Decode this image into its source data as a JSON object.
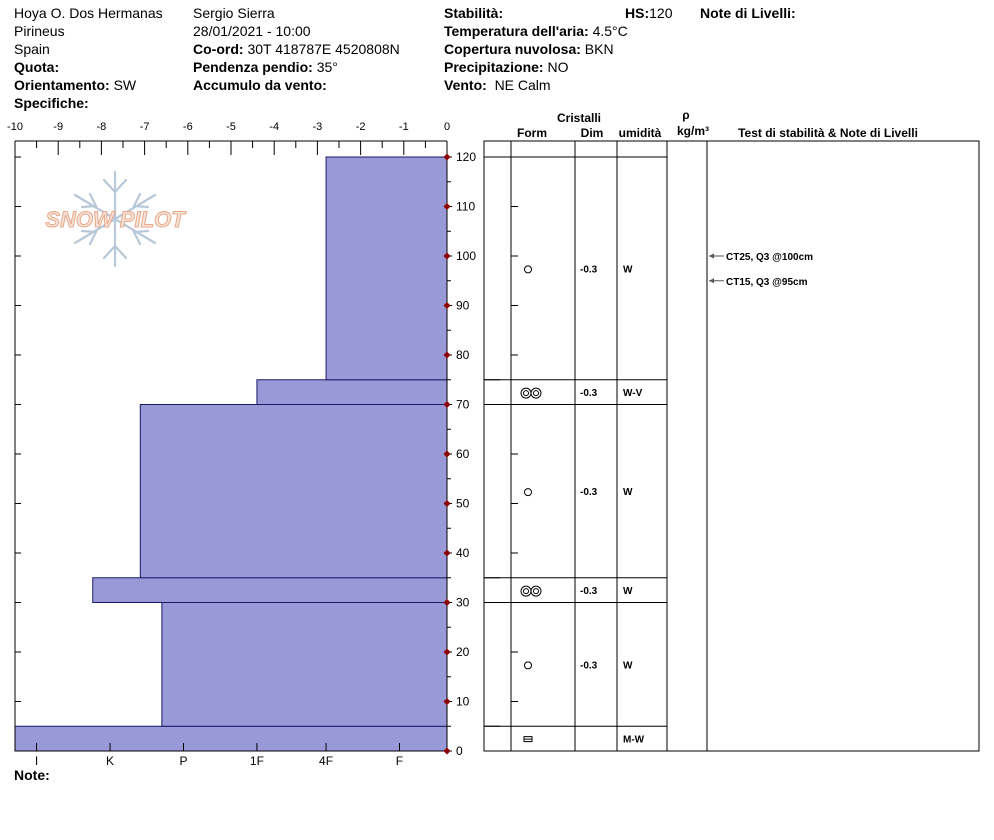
{
  "header": {
    "location": "Hoya O. Dos Hermanas",
    "region": "Pirineus",
    "country": "Spain",
    "quota_label": "Quota:",
    "orientation_label": "Orientamento:",
    "orientation_value": "SW",
    "specifics_label": "Specifiche:",
    "observer": "Sergio Sierra",
    "datetime": "28/01/2021 - 10:00",
    "coord_label": "Co-ord:",
    "coord_value": "30T 418787E 4520808N",
    "slope_label": "Pendenza pendio:",
    "slope_value": "35°",
    "wind_loading_label": "Accumulo da vento:",
    "stability_label": "Stabilità:",
    "hs_label": "HS:",
    "hs_value": "120",
    "air_temp_label": "Temperatura dell'aria:",
    "air_temp_value": "4.5°C",
    "cloud_label": "Copertura nuvolosa:",
    "cloud_value": "BKN",
    "precip_label": "Precipitazione:",
    "precip_value": "NO",
    "wind_label": "Vento:",
    "wind_value": "NE Calm",
    "layer_notes_label": "Note di Livelli:"
  },
  "note_label": "Note:",
  "logo_text": "SNOW PILOT",
  "colors": {
    "bar_fill": "#9999d8",
    "bar_stroke": "#1a1a66",
    "marker": "#8b0000"
  },
  "table_headers": {
    "crystals": "Cristalli",
    "form": "Form",
    "dim": "Dim",
    "humidity": "umidità",
    "rho": "ρ",
    "density_unit": "kg/m³",
    "tests": "Test di stabilità & Note di Livelli"
  },
  "stability_tests": [
    {
      "label": "CT25, Q3 @100cm",
      "height": 100
    },
    {
      "label": "CT15, Q3 @95cm",
      "height": 95
    }
  ],
  "chart_data": {
    "type": "bar",
    "x_ticks_top": [
      "-10",
      "-9",
      "-8",
      "-7",
      "-6",
      "-5",
      "-4",
      "-3",
      "-2",
      "-1",
      "0"
    ],
    "x_range": [
      -10,
      0
    ],
    "hardness_ticks": [
      "I",
      "K",
      "P",
      "1F",
      "4F",
      "F"
    ],
    "y_ticks": [
      "0",
      "10",
      "20",
      "30",
      "40",
      "50",
      "60",
      "70",
      "80",
      "90",
      "100",
      "110",
      "120"
    ],
    "y_range": [
      0,
      120
    ],
    "layers": [
      {
        "bottom": 0,
        "top": 5,
        "hand_hardness_extent": -10.0,
        "form_symbol": "pill",
        "dim": "",
        "humidity": "M-W"
      },
      {
        "bottom": 5,
        "top": 30,
        "hand_hardness_extent": -6.6,
        "form_symbol": "circle",
        "dim": "-0.3",
        "humidity": "W"
      },
      {
        "bottom": 30,
        "top": 35,
        "hand_hardness_extent": -8.2,
        "form_symbol": "double",
        "dim": "-0.3",
        "humidity": "W"
      },
      {
        "bottom": 35,
        "top": 70,
        "hand_hardness_extent": -7.1,
        "form_symbol": "circle",
        "dim": "-0.3",
        "humidity": "W"
      },
      {
        "bottom": 70,
        "top": 75,
        "hand_hardness_extent": -4.4,
        "form_symbol": "double",
        "dim": "-0.3",
        "humidity": "W-V"
      },
      {
        "bottom": 75,
        "top": 120,
        "hand_hardness_extent": -2.8,
        "form_symbol": "circle",
        "dim": "-0.3",
        "humidity": "W"
      }
    ]
  }
}
